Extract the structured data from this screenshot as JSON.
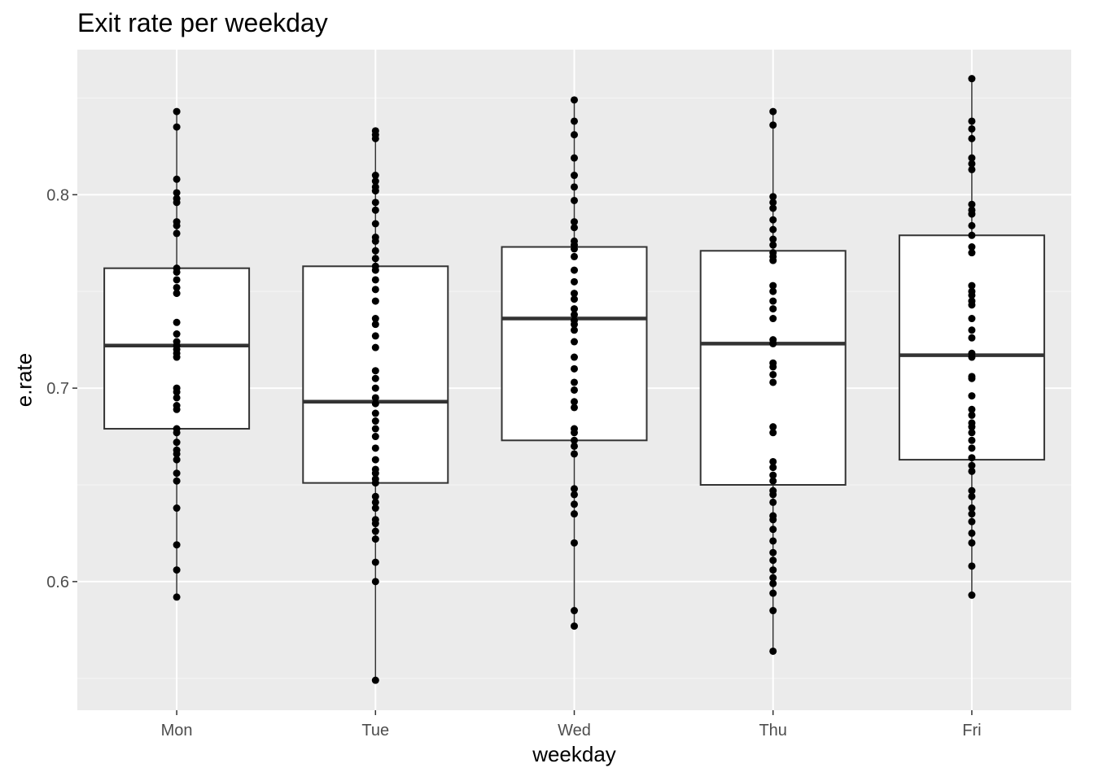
{
  "chart_data": {
    "type": "box",
    "title": "Exit rate per weekday",
    "xlabel": "weekday",
    "ylabel": "e.rate",
    "categories": [
      "Mon",
      "Tue",
      "Wed",
      "Thu",
      "Fri"
    ],
    "y_ticks": [
      0.6,
      0.7,
      0.8
    ],
    "y_tick_labels": [
      "0.6",
      "0.7",
      "0.8"
    ],
    "ylim": [
      0.5335,
      0.875
    ],
    "grid": true,
    "boxes": [
      {
        "category": "Mon",
        "min": 0.592,
        "q1": 0.679,
        "median": 0.722,
        "q3": 0.762,
        "max": 0.843
      },
      {
        "category": "Tue",
        "min": 0.549,
        "q1": 0.651,
        "median": 0.693,
        "q3": 0.763,
        "max": 0.833
      },
      {
        "category": "Wed",
        "min": 0.577,
        "q1": 0.673,
        "median": 0.736,
        "q3": 0.773,
        "max": 0.849
      },
      {
        "category": "Thu",
        "min": 0.564,
        "q1": 0.65,
        "median": 0.723,
        "q3": 0.771,
        "max": 0.843
      },
      {
        "category": "Fri",
        "min": 0.593,
        "q1": 0.663,
        "median": 0.717,
        "q3": 0.779,
        "max": 0.86
      }
    ],
    "points": {
      "Mon": [
        0.843,
        0.835,
        0.808,
        0.801,
        0.798,
        0.796,
        0.786,
        0.784,
        0.78,
        0.762,
        0.76,
        0.756,
        0.752,
        0.749,
        0.734,
        0.728,
        0.724,
        0.722,
        0.72,
        0.718,
        0.716,
        0.7,
        0.698,
        0.695,
        0.691,
        0.689,
        0.679,
        0.677,
        0.672,
        0.668,
        0.666,
        0.663,
        0.656,
        0.652,
        0.638,
        0.619,
        0.606,
        0.592
      ],
      "Tue": [
        0.833,
        0.831,
        0.829,
        0.81,
        0.807,
        0.804,
        0.802,
        0.796,
        0.792,
        0.785,
        0.778,
        0.776,
        0.771,
        0.767,
        0.763,
        0.761,
        0.756,
        0.751,
        0.745,
        0.736,
        0.733,
        0.727,
        0.721,
        0.709,
        0.705,
        0.7,
        0.695,
        0.692,
        0.687,
        0.683,
        0.679,
        0.675,
        0.669,
        0.663,
        0.658,
        0.656,
        0.653,
        0.651,
        0.644,
        0.641,
        0.638,
        0.632,
        0.63,
        0.626,
        0.622,
        0.61,
        0.6,
        0.549
      ],
      "Wed": [
        0.849,
        0.838,
        0.831,
        0.819,
        0.81,
        0.804,
        0.797,
        0.786,
        0.783,
        0.776,
        0.774,
        0.772,
        0.768,
        0.761,
        0.755,
        0.749,
        0.746,
        0.741,
        0.738,
        0.735,
        0.733,
        0.73,
        0.724,
        0.716,
        0.71,
        0.703,
        0.699,
        0.693,
        0.69,
        0.679,
        0.677,
        0.673,
        0.67,
        0.666,
        0.648,
        0.645,
        0.64,
        0.635,
        0.62,
        0.585,
        0.577
      ],
      "Thu": [
        0.843,
        0.836,
        0.799,
        0.796,
        0.793,
        0.787,
        0.782,
        0.777,
        0.774,
        0.77,
        0.768,
        0.766,
        0.753,
        0.75,
        0.745,
        0.741,
        0.736,
        0.725,
        0.723,
        0.713,
        0.711,
        0.707,
        0.703,
        0.68,
        0.677,
        0.662,
        0.659,
        0.655,
        0.652,
        0.647,
        0.645,
        0.641,
        0.634,
        0.632,
        0.627,
        0.621,
        0.615,
        0.611,
        0.606,
        0.602,
        0.599,
        0.594,
        0.585,
        0.564
      ],
      "Fri": [
        0.86,
        0.838,
        0.834,
        0.829,
        0.819,
        0.816,
        0.813,
        0.795,
        0.792,
        0.79,
        0.784,
        0.779,
        0.773,
        0.77,
        0.753,
        0.75,
        0.748,
        0.745,
        0.743,
        0.736,
        0.73,
        0.726,
        0.718,
        0.716,
        0.706,
        0.705,
        0.696,
        0.689,
        0.686,
        0.682,
        0.68,
        0.677,
        0.673,
        0.669,
        0.664,
        0.66,
        0.657,
        0.647,
        0.644,
        0.638,
        0.635,
        0.631,
        0.625,
        0.62,
        0.608,
        0.593
      ]
    },
    "colors": {
      "panel_background": "#ebebeb",
      "grid_major": "#ffffff",
      "grid_minor": "#f5f5f5",
      "box_fill": "#ffffff",
      "box_outline": "#333333",
      "median_line": "#333333",
      "points": "#000000",
      "tick_text": "#4d4d4d"
    }
  }
}
